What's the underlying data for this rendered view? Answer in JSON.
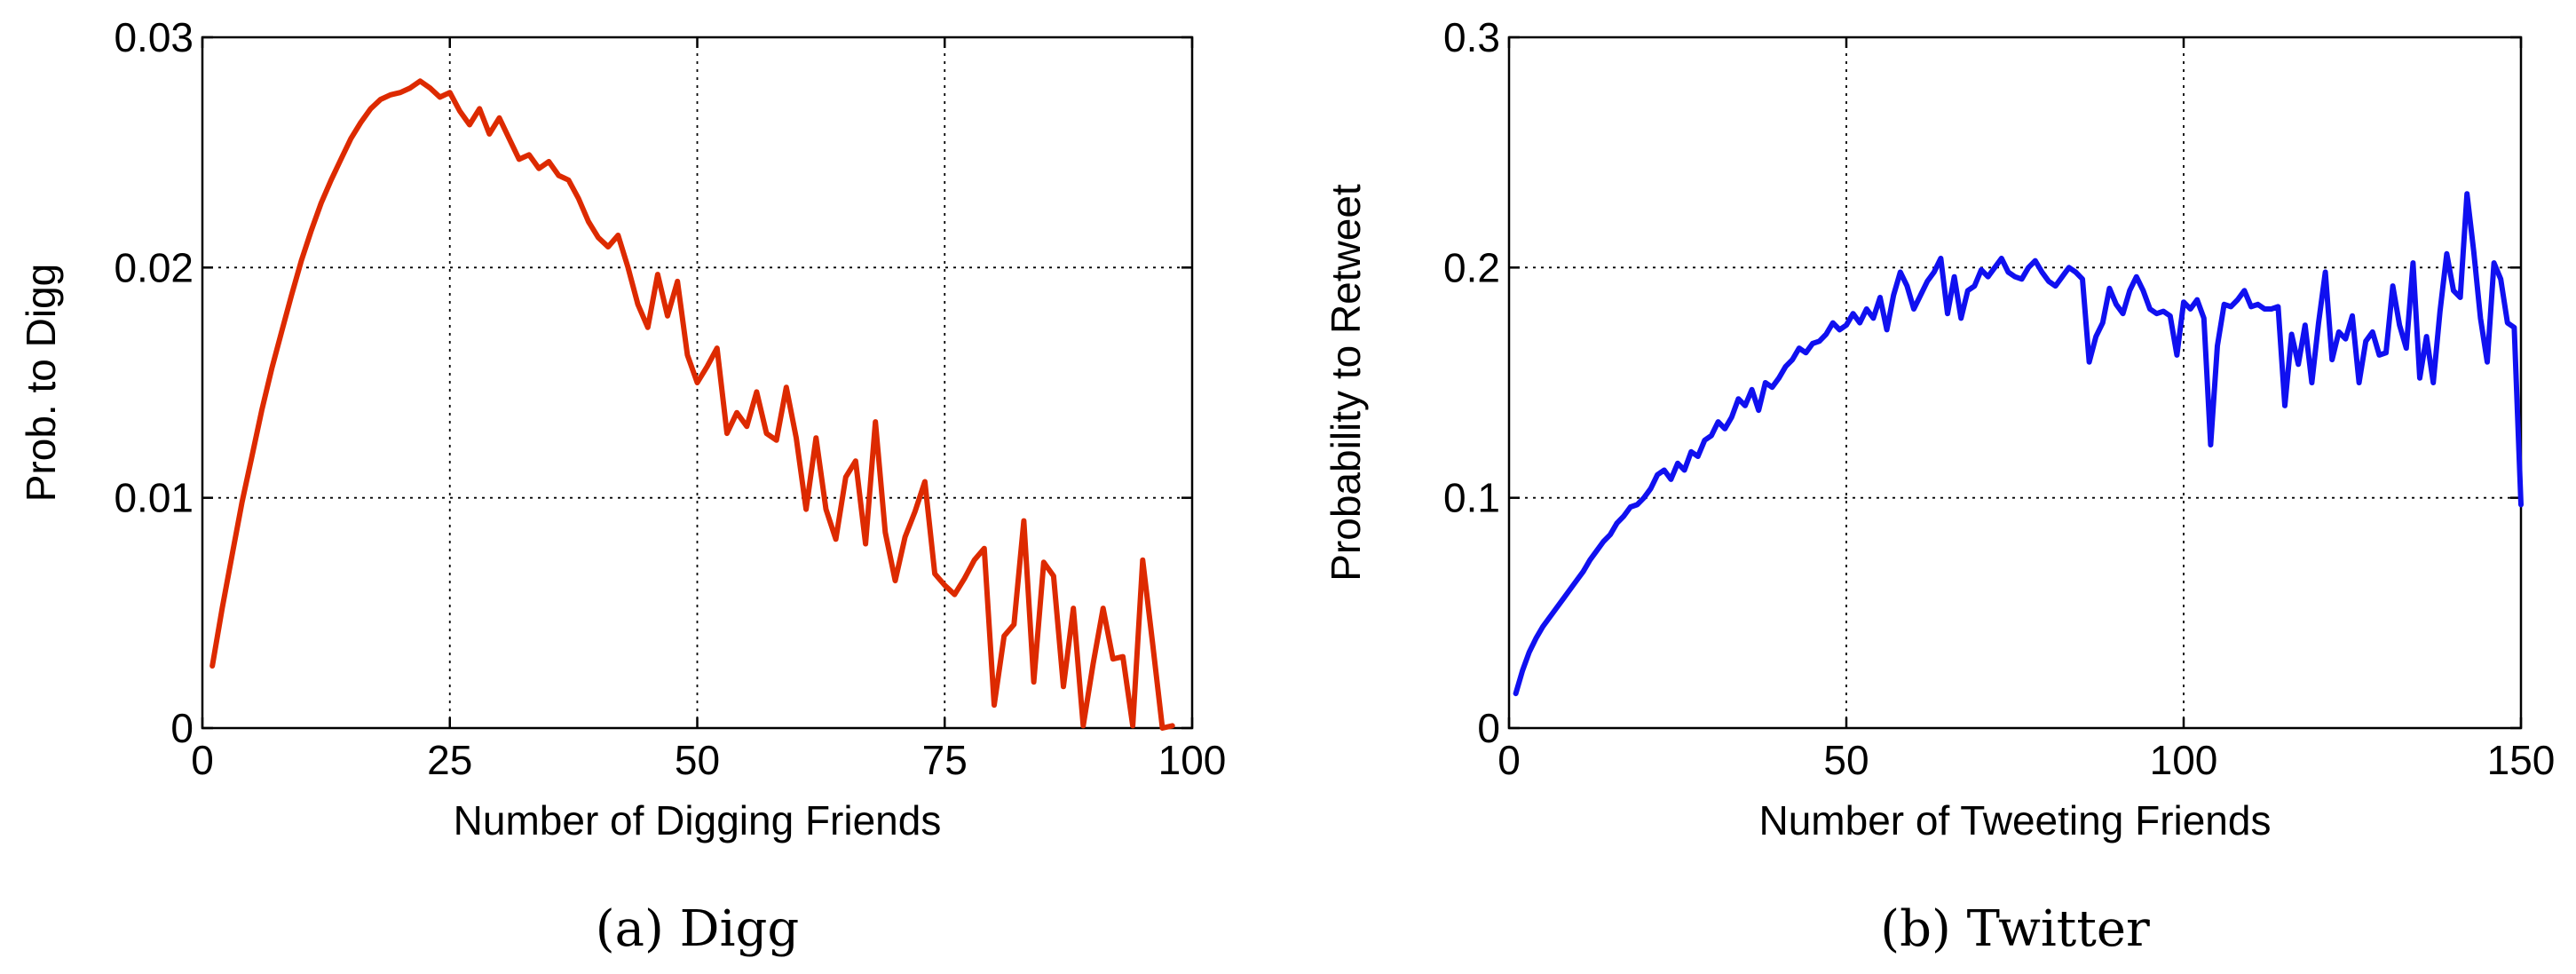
{
  "chart_data": [
    {
      "type": "line",
      "xlabel": "Number of Digging Friends",
      "ylabel": "Prob. to Digg",
      "xlim": [
        0,
        100
      ],
      "ylim": [
        0,
        0.03
      ],
      "xticks": [
        "0",
        "25",
        "50",
        "75",
        "100"
      ],
      "yticks": [
        "0",
        "0.01",
        "0.02",
        "0.03"
      ],
      "grid": true,
      "caption": "(a)  Digg",
      "color": "#dd2a00",
      "series": [
        {
          "x": [
            1,
            2,
            3,
            4,
            5,
            6,
            7,
            8,
            9,
            10,
            11,
            12,
            13,
            14,
            15,
            16,
            17,
            18,
            19,
            20,
            21,
            22,
            23,
            24,
            25,
            26,
            27,
            28,
            29,
            30,
            31,
            32,
            33,
            34,
            35,
            36,
            37,
            38,
            39,
            40,
            41,
            42,
            43,
            44,
            45,
            46,
            47,
            48,
            49,
            50,
            51,
            52,
            53,
            54,
            55,
            56,
            57,
            58,
            59,
            60,
            61,
            62,
            63,
            64,
            65,
            66,
            67,
            68,
            69,
            70,
            71,
            72,
            73,
            74,
            75,
            76,
            77,
            78,
            79,
            80,
            81,
            82,
            83,
            84,
            85,
            86,
            87,
            88,
            89,
            90,
            91,
            92,
            93,
            94,
            95,
            96,
            97,
            98
          ],
          "y": [
            0.0027,
            0.0052,
            0.0075,
            0.0098,
            0.0118,
            0.0138,
            0.0156,
            0.0172,
            0.0188,
            0.0203,
            0.0216,
            0.0228,
            0.0238,
            0.0247,
            0.0256,
            0.0263,
            0.0269,
            0.0273,
            0.0275,
            0.0276,
            0.0278,
            0.0281,
            0.0278,
            0.0274,
            0.0276,
            0.0268,
            0.0262,
            0.0269,
            0.0258,
            0.0265,
            0.0256,
            0.0247,
            0.0249,
            0.0243,
            0.0246,
            0.024,
            0.0238,
            0.023,
            0.022,
            0.0213,
            0.0209,
            0.0214,
            0.02,
            0.0184,
            0.0174,
            0.0197,
            0.0179,
            0.0194,
            0.0162,
            0.015,
            0.0157,
            0.0165,
            0.0128,
            0.0137,
            0.0131,
            0.0146,
            0.0128,
            0.0125,
            0.0148,
            0.0126,
            0.0095,
            0.0126,
            0.0095,
            0.0082,
            0.0109,
            0.0116,
            0.008,
            0.0133,
            0.0085,
            0.0064,
            0.0083,
            0.0094,
            0.0107,
            0.0067,
            0.0062,
            0.0058,
            0.0065,
            0.0073,
            0.0078,
            0.001,
            0.004,
            0.0045,
            0.009,
            0.002,
            0.0072,
            0.0066,
            0.0018,
            0.0052,
            0.0001,
            0.0028,
            0.0052,
            0.003,
            0.0031,
            0.0001,
            0.0073,
            0.0037,
            0.0,
            0.0001
          ]
        }
      ]
    },
    {
      "type": "line",
      "xlabel": "Number of  Tweeting Friends",
      "ylabel": "Probability to Retweet",
      "xlim": [
        0,
        150
      ],
      "ylim": [
        0,
        0.3
      ],
      "xticks": [
        "0",
        "50",
        "100",
        "150"
      ],
      "yticks": [
        "0",
        "0.1",
        "0.2",
        "0.3"
      ],
      "grid": true,
      "caption": "(b)  Twitter",
      "color": "#1010f0",
      "series": [
        {
          "x": [
            1,
            2,
            3,
            4,
            5,
            6,
            7,
            8,
            9,
            10,
            11,
            12,
            13,
            14,
            15,
            16,
            17,
            18,
            19,
            20,
            21,
            22,
            23,
            24,
            25,
            26,
            27,
            28,
            29,
            30,
            31,
            32,
            33,
            34,
            35,
            36,
            37,
            38,
            39,
            40,
            41,
            42,
            43,
            44,
            45,
            46,
            47,
            48,
            49,
            50,
            51,
            52,
            53,
            54,
            55,
            56,
            57,
            58,
            59,
            60,
            61,
            62,
            63,
            64,
            65,
            66,
            67,
            68,
            69,
            70,
            71,
            72,
            73,
            74,
            75,
            76,
            77,
            78,
            79,
            80,
            81,
            82,
            83,
            84,
            85,
            86,
            87,
            88,
            89,
            90,
            91,
            92,
            93,
            94,
            95,
            96,
            97,
            98,
            99,
            100,
            101,
            102,
            103,
            104,
            105,
            106,
            107,
            108,
            109,
            110,
            111,
            112,
            113,
            114,
            115,
            116,
            117,
            118,
            119,
            120,
            121,
            122,
            123,
            124,
            125,
            126,
            127,
            128,
            129,
            130,
            131,
            132,
            133,
            134,
            135,
            136,
            137,
            138,
            139,
            140,
            141,
            142,
            143,
            144,
            145,
            146,
            147,
            148,
            149,
            150
          ],
          "y": [
            0.015,
            0.025,
            0.033,
            0.039,
            0.044,
            0.048,
            0.052,
            0.056,
            0.06,
            0.064,
            0.068,
            0.073,
            0.077,
            0.081,
            0.084,
            0.089,
            0.092,
            0.096,
            0.097,
            0.1,
            0.104,
            0.11,
            0.112,
            0.108,
            0.115,
            0.112,
            0.12,
            0.118,
            0.125,
            0.127,
            0.133,
            0.13,
            0.135,
            0.143,
            0.14,
            0.147,
            0.138,
            0.15,
            0.148,
            0.152,
            0.157,
            0.16,
            0.165,
            0.163,
            0.167,
            0.168,
            0.171,
            0.176,
            0.173,
            0.175,
            0.18,
            0.176,
            0.182,
            0.178,
            0.187,
            0.173,
            0.188,
            0.198,
            0.192,
            0.182,
            0.188,
            0.194,
            0.198,
            0.204,
            0.18,
            0.196,
            0.178,
            0.19,
            0.192,
            0.199,
            0.196,
            0.2,
            0.204,
            0.198,
            0.196,
            0.195,
            0.2,
            0.203,
            0.198,
            0.194,
            0.192,
            0.196,
            0.2,
            0.198,
            0.195,
            0.159,
            0.17,
            0.176,
            0.191,
            0.184,
            0.18,
            0.19,
            0.196,
            0.19,
            0.182,
            0.18,
            0.181,
            0.179,
            0.162,
            0.185,
            0.182,
            0.186,
            0.178,
            0.123,
            0.166,
            0.184,
            0.183,
            0.186,
            0.19,
            0.183,
            0.184,
            0.182,
            0.182,
            0.183,
            0.14,
            0.171,
            0.158,
            0.175,
            0.15,
            0.176,
            0.198,
            0.16,
            0.172,
            0.169,
            0.179,
            0.15,
            0.168,
            0.172,
            0.162,
            0.163,
            0.192,
            0.175,
            0.165,
            0.202,
            0.152,
            0.17,
            0.15,
            0.181,
            0.206,
            0.19,
            0.187,
            0.232,
            0.207,
            0.178,
            0.159,
            0.202,
            0.195,
            0.176,
            0.174,
            0.097
          ]
        }
      ]
    }
  ]
}
